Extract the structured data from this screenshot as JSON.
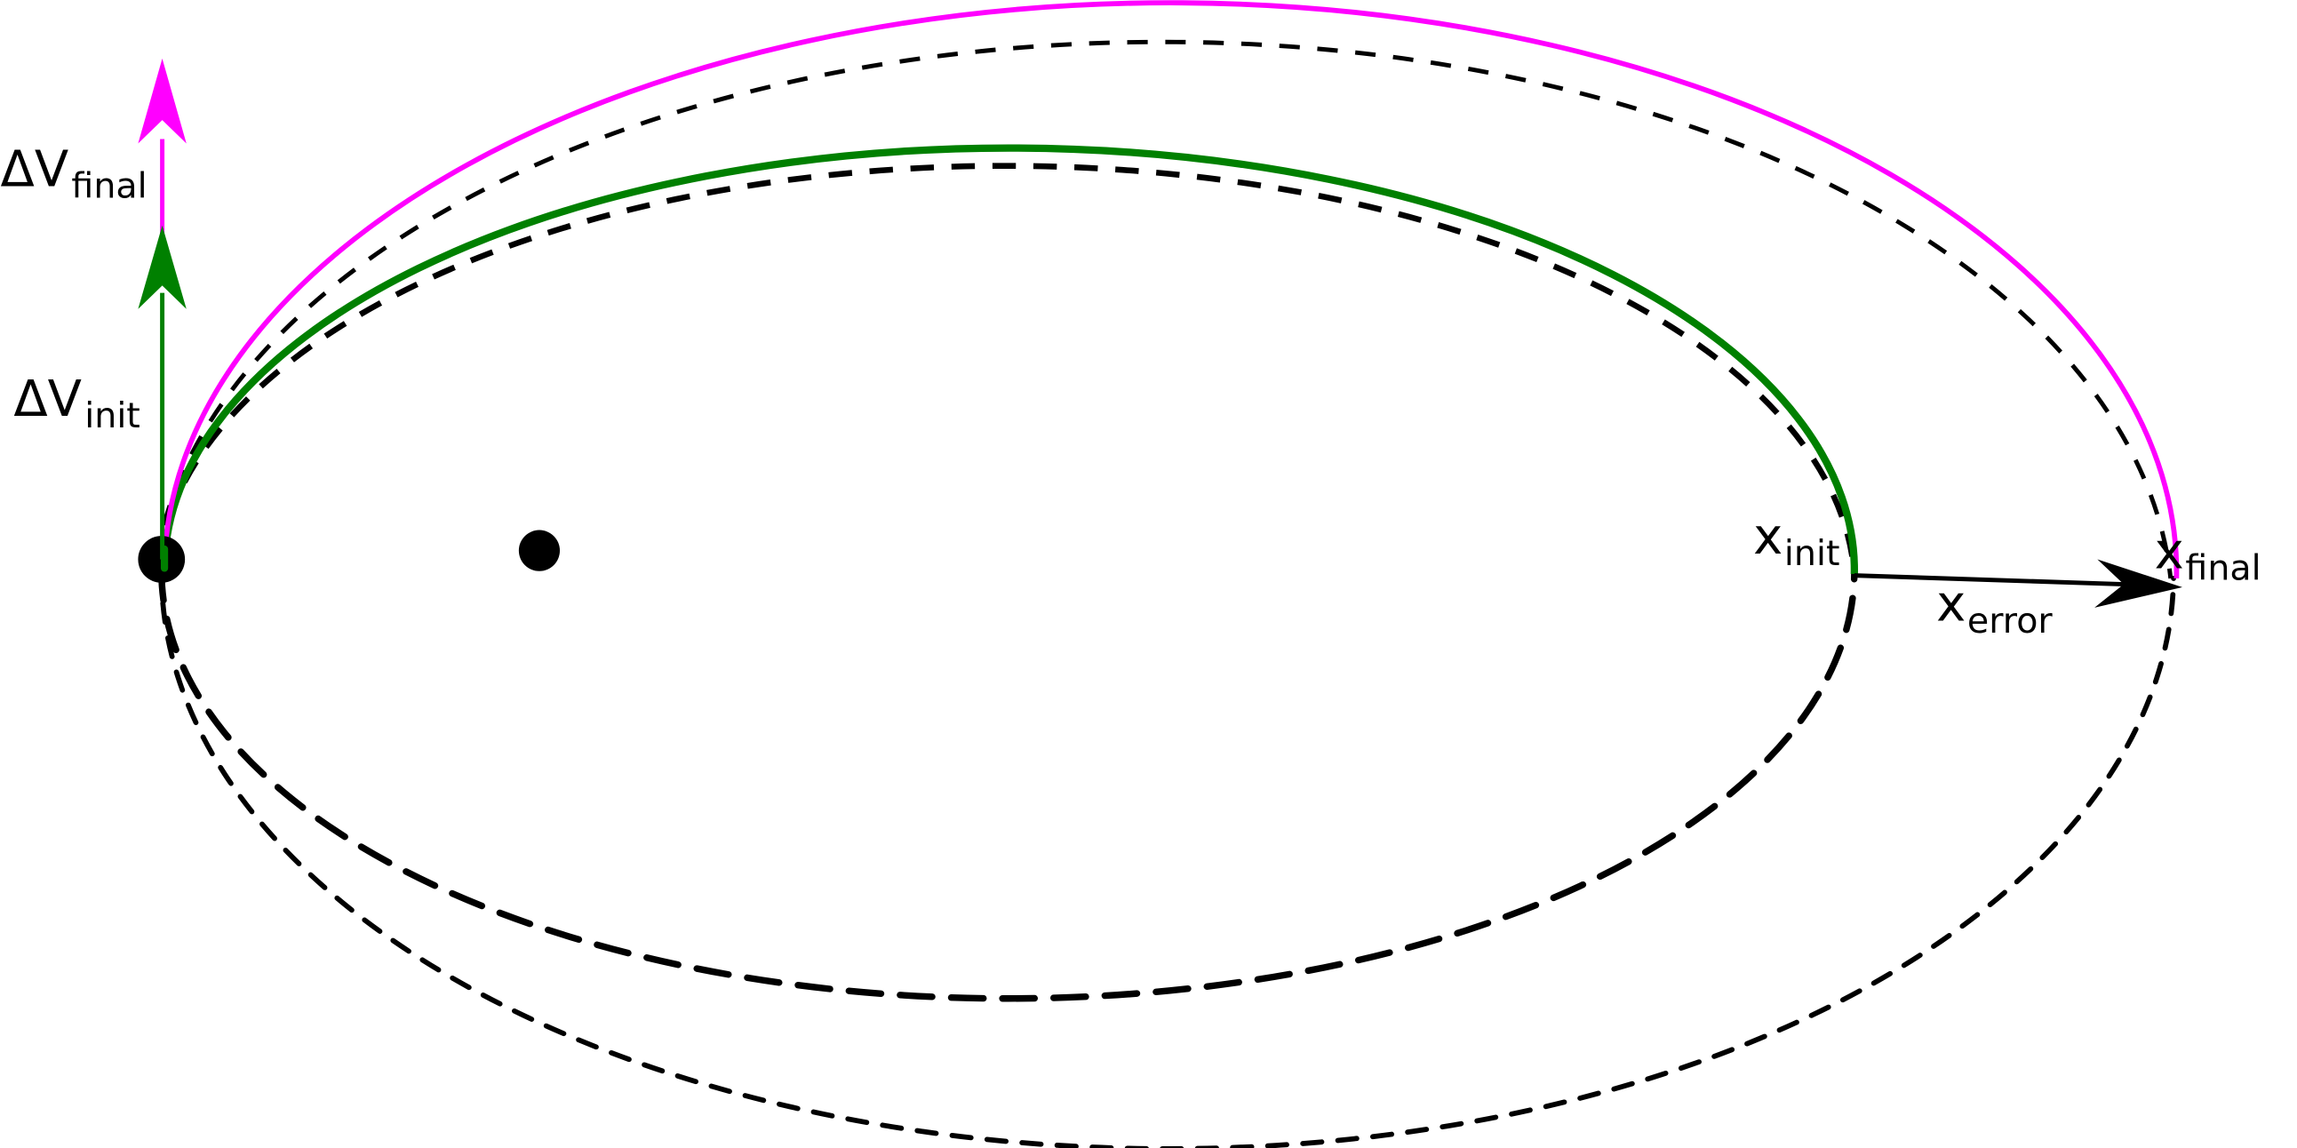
{
  "colors": {
    "initial_orbit": "#008000",
    "final_orbit": "#ff00ff",
    "reference": "#000000"
  },
  "labels": {
    "dv_final": {
      "main": "ΔV",
      "sub": "final"
    },
    "dv_init": {
      "main": "ΔV",
      "sub": "init"
    },
    "x_init": {
      "main": "x",
      "sub": "init"
    },
    "x_final": {
      "main": "x",
      "sub": "final"
    },
    "x_error": {
      "main": "x",
      "sub": "error"
    }
  }
}
